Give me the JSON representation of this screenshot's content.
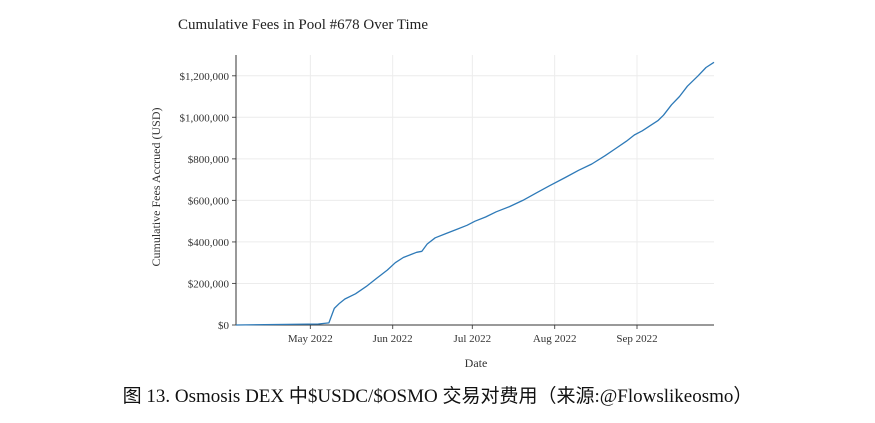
{
  "chart_data": {
    "type": "line",
    "title": "Cumulative Fees in Pool #678 Over Time",
    "xlabel": "Date",
    "ylabel": "Cumulative Fees Accrued (USD)",
    "ylim": [
      0,
      1300000
    ],
    "xlim": [
      "2022-04-03",
      "2022-09-30"
    ],
    "grid": true,
    "y_ticks": [
      {
        "value": 0,
        "label": "$0"
      },
      {
        "value": 200000,
        "label": "$200,000"
      },
      {
        "value": 400000,
        "label": "$400,000"
      },
      {
        "value": 600000,
        "label": "$600,000"
      },
      {
        "value": 800000,
        "label": "$800,000"
      },
      {
        "value": 1000000,
        "label": "$1,000,000"
      },
      {
        "value": 1200000,
        "label": "$1,200,000"
      }
    ],
    "x_ticks": [
      {
        "value": "2022-05-01",
        "label": "May 2022"
      },
      {
        "value": "2022-06-01",
        "label": "Jun 2022"
      },
      {
        "value": "2022-07-01",
        "label": "Jul 2022"
      },
      {
        "value": "2022-08-01",
        "label": "Aug 2022"
      },
      {
        "value": "2022-09-01",
        "label": "Sep 2022"
      }
    ],
    "series": [
      {
        "color": "#2e7ab8",
        "x": [
          "2022-04-03",
          "2022-05-04",
          "2022-05-08",
          "2022-05-10",
          "2022-05-12",
          "2022-05-14",
          "2022-05-18",
          "2022-05-22",
          "2022-05-26",
          "2022-05-30",
          "2022-06-02",
          "2022-06-05",
          "2022-06-08",
          "2022-06-10",
          "2022-06-12",
          "2022-06-14",
          "2022-06-17",
          "2022-06-21",
          "2022-06-25",
          "2022-06-29",
          "2022-07-02",
          "2022-07-06",
          "2022-07-10",
          "2022-07-15",
          "2022-07-20",
          "2022-07-25",
          "2022-07-30",
          "2022-08-05",
          "2022-08-10",
          "2022-08-15",
          "2022-08-20",
          "2022-08-24",
          "2022-08-28",
          "2022-08-31",
          "2022-09-03",
          "2022-09-06",
          "2022-09-09",
          "2022-09-11",
          "2022-09-14",
          "2022-09-17",
          "2022-09-20",
          "2022-09-24",
          "2022-09-27",
          "2022-09-30"
        ],
        "y": [
          0,
          5000,
          10000,
          80000,
          105000,
          125000,
          150000,
          185000,
          225000,
          265000,
          300000,
          325000,
          340000,
          350000,
          355000,
          390000,
          420000,
          440000,
          460000,
          480000,
          500000,
          520000,
          545000,
          570000,
          600000,
          635000,
          670000,
          710000,
          745000,
          775000,
          815000,
          850000,
          885000,
          915000,
          935000,
          960000,
          985000,
          1010000,
          1060000,
          1100000,
          1150000,
          1200000,
          1240000,
          1265000
        ]
      }
    ]
  },
  "caption": "图 13. Osmosis DEX 中$USDC/$OSMO 交易对费用（来源:@Flowslikeosmo）"
}
